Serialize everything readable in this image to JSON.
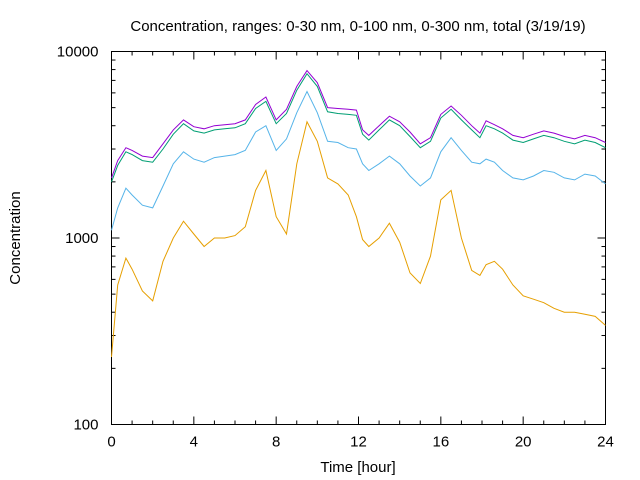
{
  "chart_data": {
    "type": "line",
    "title": "Concentration, ranges: 0-30 nm, 0-100 nm, 0-300 nm, total (3/19/19)",
    "xlabel": "Time [hour]",
    "ylabel": "Concentration",
    "xlim": [
      0,
      24
    ],
    "ylim": [
      100,
      10000
    ],
    "yscale": "log",
    "grid": false,
    "legend": "none",
    "xticks": [
      0,
      4,
      8,
      12,
      16,
      20,
      24
    ],
    "xtick_labels": [
      "0",
      "4",
      "8",
      "12",
      "16",
      "20",
      "24"
    ],
    "yticks": [
      100,
      1000,
      10000
    ],
    "ytick_labels": [
      "100",
      "1000",
      "10000"
    ],
    "series": [
      {
        "color": "#9400d3",
        "x": [
          0,
          0.3,
          0.7,
          1,
          1.5,
          2,
          2.5,
          3,
          3.5,
          4,
          4.5,
          5,
          5.5,
          6,
          6.5,
          7,
          7.5,
          8,
          8.5,
          9,
          9.5,
          10,
          10.5,
          11,
          11.5,
          11.9,
          12.2,
          12.5,
          13,
          13.5,
          14,
          14.5,
          15,
          15.5,
          16,
          16.5,
          17,
          17.5,
          17.9,
          18.2,
          18.6,
          19,
          19.5,
          20,
          20.5,
          21,
          21.5,
          22,
          22.5,
          23,
          23.5,
          24
        ],
        "y": [
          2100,
          2600,
          3050,
          2950,
          2750,
          2700,
          3200,
          3800,
          4300,
          3950,
          3850,
          4000,
          4050,
          4100,
          4300,
          5200,
          5700,
          4300,
          4900,
          6500,
          7900,
          6800,
          5000,
          4950,
          4900,
          4850,
          3800,
          3550,
          4000,
          4500,
          4200,
          3700,
          3200,
          3450,
          4600,
          5100,
          4550,
          4000,
          3650,
          4250,
          4050,
          3850,
          3550,
          3450,
          3600,
          3750,
          3650,
          3500,
          3400,
          3550,
          3450,
          3250
        ]
      },
      {
        "color": "#009e73",
        "x": [
          0,
          0.3,
          0.7,
          1,
          1.5,
          2,
          2.5,
          3,
          3.5,
          4,
          4.5,
          5,
          5.5,
          6,
          6.5,
          7,
          7.5,
          8,
          8.5,
          9,
          9.5,
          10,
          10.5,
          11,
          11.5,
          11.9,
          12.2,
          12.5,
          13,
          13.5,
          14,
          14.5,
          15,
          15.5,
          16,
          16.5,
          17,
          17.5,
          17.9,
          18.2,
          18.6,
          19,
          19.5,
          20,
          20.5,
          21,
          21.5,
          22,
          22.5,
          23,
          23.5,
          24
        ],
        "y": [
          2000,
          2450,
          2900,
          2800,
          2600,
          2550,
          3000,
          3600,
          4100,
          3750,
          3650,
          3800,
          3850,
          3900,
          4100,
          4950,
          5400,
          4100,
          4650,
          6200,
          7600,
          6500,
          4750,
          4650,
          4600,
          4550,
          3600,
          3350,
          3800,
          4300,
          4000,
          3500,
          3050,
          3300,
          4400,
          4900,
          4300,
          3800,
          3450,
          4000,
          3850,
          3650,
          3350,
          3250,
          3400,
          3550,
          3450,
          3300,
          3200,
          3350,
          3250,
          3050
        ]
      },
      {
        "color": "#56b4e9",
        "x": [
          0,
          0.3,
          0.7,
          1,
          1.5,
          2,
          2.5,
          3,
          3.5,
          4,
          4.5,
          5,
          5.5,
          6,
          6.5,
          7,
          7.5,
          8,
          8.5,
          9,
          9.5,
          10,
          10.5,
          11,
          11.5,
          11.9,
          12.2,
          12.5,
          13,
          13.5,
          14,
          14.5,
          15,
          15.5,
          16,
          16.5,
          17,
          17.5,
          17.9,
          18.2,
          18.6,
          19,
          19.5,
          20,
          20.5,
          21,
          21.5,
          22,
          22.5,
          23,
          23.5,
          24
        ],
        "y": [
          1100,
          1450,
          1850,
          1700,
          1500,
          1450,
          1900,
          2500,
          2900,
          2650,
          2550,
          2700,
          2750,
          2800,
          2950,
          3700,
          4000,
          2950,
          3400,
          4700,
          6100,
          4700,
          3300,
          3250,
          3050,
          3000,
          2500,
          2300,
          2500,
          2750,
          2500,
          2150,
          1900,
          2100,
          2900,
          3450,
          2950,
          2550,
          2500,
          2650,
          2550,
          2300,
          2100,
          2050,
          2150,
          2300,
          2250,
          2100,
          2050,
          2200,
          2150,
          1950
        ]
      },
      {
        "color": "#e69f00",
        "x": [
          0,
          0.3,
          0.7,
          1,
          1.5,
          2,
          2.5,
          3,
          3.5,
          4,
          4.5,
          5,
          5.5,
          6,
          6.5,
          7,
          7.5,
          8,
          8.5,
          9,
          9.5,
          10,
          10.5,
          11,
          11.5,
          11.9,
          12.2,
          12.5,
          13,
          13.5,
          14,
          14.5,
          15,
          15.5,
          16,
          16.5,
          17,
          17.5,
          17.9,
          18.2,
          18.6,
          19,
          19.5,
          20,
          20.5,
          21,
          21.5,
          22,
          22.5,
          23,
          23.5,
          24
        ],
        "y": [
          230,
          560,
          780,
          680,
          520,
          460,
          750,
          1000,
          1230,
          1050,
          900,
          1000,
          1000,
          1030,
          1150,
          1800,
          2300,
          1300,
          1050,
          2500,
          4200,
          3300,
          2100,
          1950,
          1700,
          1300,
          980,
          900,
          1000,
          1200,
          950,
          650,
          570,
          800,
          1600,
          1800,
          1000,
          670,
          630,
          720,
          750,
          680,
          560,
          490,
          470,
          450,
          420,
          400,
          400,
          390,
          380,
          340
        ]
      }
    ]
  }
}
